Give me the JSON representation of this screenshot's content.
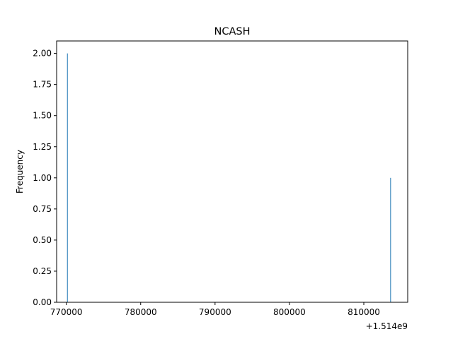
{
  "chart_data": {
    "type": "histogram",
    "title": "NCASH",
    "xlabel": "",
    "ylabel": "Frequency",
    "x_offset_label": "+1.514e9",
    "x_offset": 1514000000,
    "xlim": [
      768700,
      815900
    ],
    "ylim": [
      0,
      2.1
    ],
    "x_ticks": [
      770000,
      780000,
      790000,
      800000,
      810000
    ],
    "x_tick_labels": [
      "770000",
      "780000",
      "790000",
      "800000",
      "810000"
    ],
    "y_ticks": [
      0,
      0.25,
      0.5,
      0.75,
      1.0,
      1.25,
      1.5,
      1.75,
      2.0
    ],
    "y_tick_labels": [
      "0.00",
      "0.25",
      "0.50",
      "0.75",
      "1.00",
      "1.25",
      "1.50",
      "1.75",
      "2.00"
    ],
    "bars": [
      {
        "x": 770150,
        "value": 2
      },
      {
        "x": 813600,
        "value": 1
      }
    ],
    "bar_color": "#1f77b4",
    "grid": false,
    "legend": "none"
  }
}
